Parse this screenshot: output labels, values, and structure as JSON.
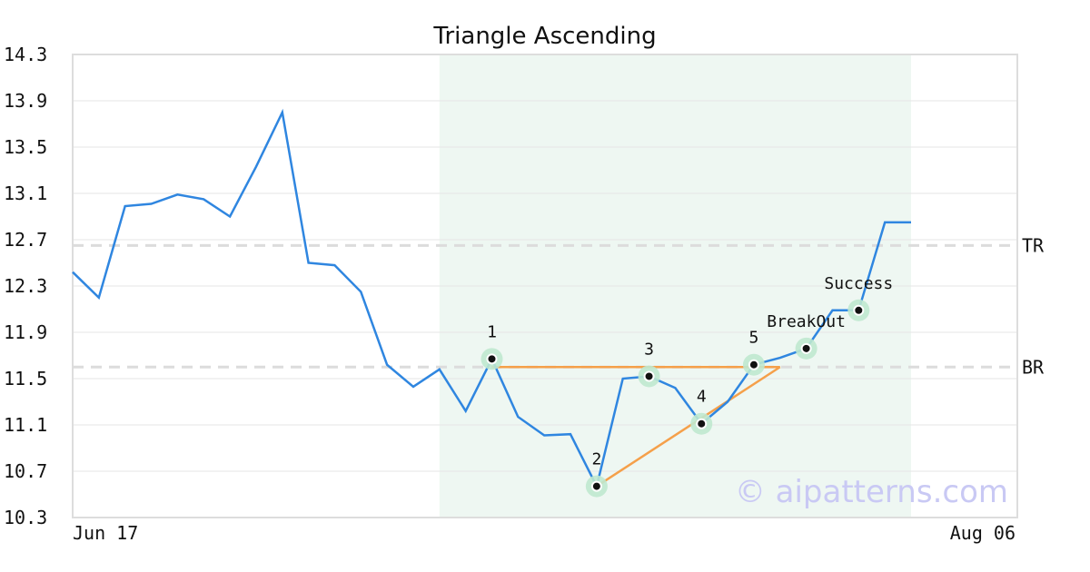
{
  "chart_data": {
    "type": "line",
    "title": "Triangle Ascending",
    "xlabel": "",
    "ylabel": "",
    "ylim": [
      10.3,
      14.3
    ],
    "y_ticks": [
      "10.3",
      "10.7",
      "11.1",
      "11.5",
      "11.9",
      "12.3",
      "12.7",
      "13.1",
      "13.5",
      "13.9",
      "14.3"
    ],
    "x_tick_labels": [
      {
        "index": 0,
        "label": "Jun 17"
      },
      {
        "index": 36,
        "label": "Aug 06"
      }
    ],
    "grid": true,
    "series": [
      {
        "color": "#2f86e0",
        "values": [
          12.42,
          12.2,
          12.99,
          13.01,
          13.09,
          13.05,
          12.9,
          13.33,
          13.8,
          12.5,
          12.48,
          12.25,
          11.62,
          11.43,
          11.58,
          11.22,
          11.67,
          11.17,
          11.01,
          11.02,
          10.57,
          11.5,
          11.52,
          11.42,
          11.11,
          11.3,
          11.62,
          11.68,
          11.76,
          12.09,
          12.09,
          12.85,
          12.85
        ]
      }
    ],
    "pattern_region": {
      "start_index": 14,
      "end_index": 32,
      "color": "#eef7f2"
    },
    "horizontal_lines": [
      {
        "label": "TR",
        "value": 12.65
      },
      {
        "label": "BR",
        "value": 11.6
      }
    ],
    "pattern_points": [
      {
        "label": "1",
        "index": 16,
        "value": 11.67
      },
      {
        "label": "2",
        "index": 20,
        "value": 10.57
      },
      {
        "label": "3",
        "index": 22,
        "value": 11.52
      },
      {
        "label": "4",
        "index": 24,
        "value": 11.11
      },
      {
        "label": "5",
        "index": 26,
        "value": 11.62
      },
      {
        "label": "BreakOut",
        "index": 28,
        "value": 11.76
      },
      {
        "label": "Success",
        "index": 30,
        "value": 12.09
      }
    ],
    "trendlines": [
      {
        "color": "#f5a04a",
        "points": [
          [
            16,
            11.6
          ],
          [
            27,
            11.6
          ]
        ]
      },
      {
        "color": "#f5a04a",
        "points": [
          [
            20,
            10.57
          ],
          [
            27,
            11.6
          ]
        ]
      }
    ],
    "line_color": "#2f86e0",
    "trendline_color": "#f5a04a",
    "marker_halo_color": "#bfe8cf",
    "watermark": "© aipatterns.com"
  }
}
